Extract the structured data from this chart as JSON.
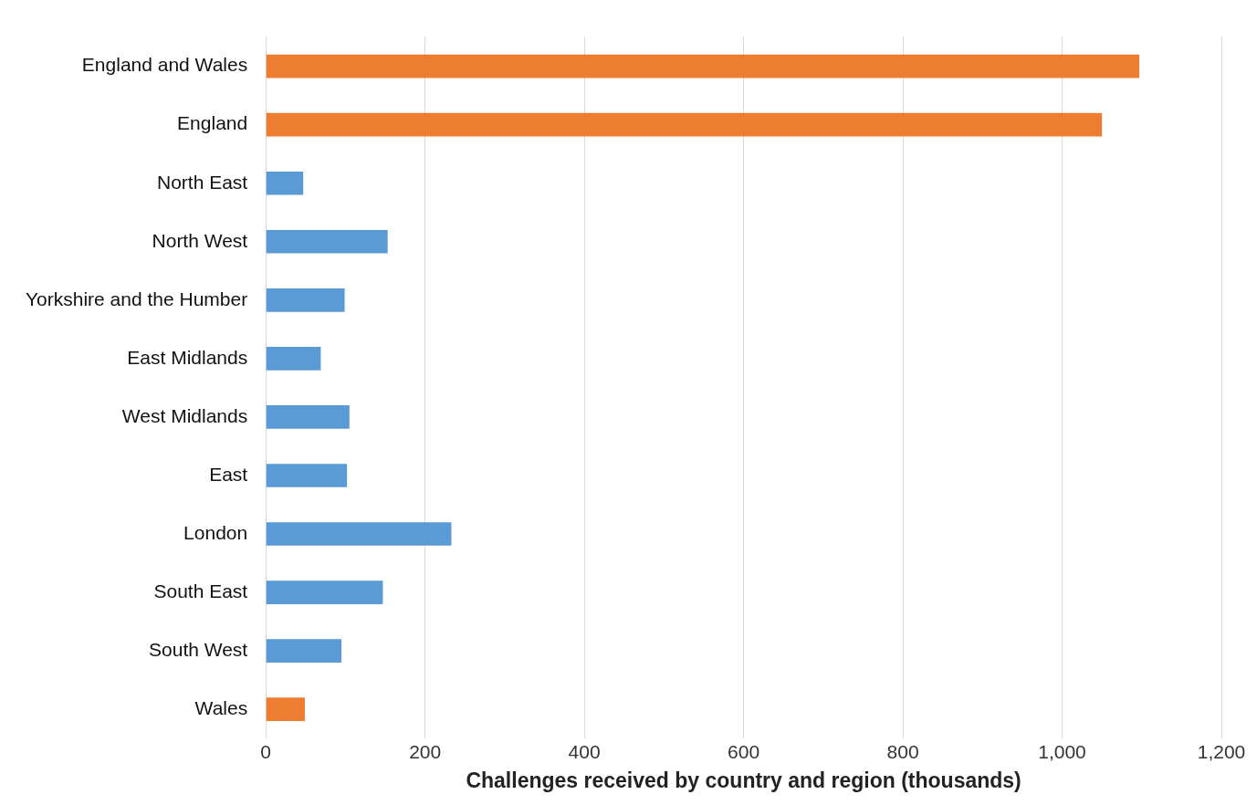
{
  "chart_data": {
    "type": "bar",
    "orientation": "horizontal",
    "xlabel": "Challenges received by country and region (thousands)",
    "categories": [
      "England and Wales",
      "England",
      "North East",
      "North West",
      "Yorkshire and the Humber",
      "East Midlands",
      "West Midlands",
      "East",
      "London",
      "South East",
      "South West",
      "Wales"
    ],
    "values": [
      1097,
      1050,
      47,
      153,
      99,
      69,
      105,
      102,
      233,
      147,
      95,
      49
    ],
    "colors": [
      "#ed7d31",
      "#ed7d31",
      "#5b9bd5",
      "#5b9bd5",
      "#5b9bd5",
      "#5b9bd5",
      "#5b9bd5",
      "#5b9bd5",
      "#5b9bd5",
      "#5b9bd5",
      "#5b9bd5",
      "#ed7d31"
    ],
    "xlim": [
      0,
      1200
    ],
    "xticks": [
      0,
      {
        "value": 200,
        "label": "200"
      },
      {
        "value": 400,
        "label": "400"
      },
      {
        "value": 600,
        "label": "600"
      },
      {
        "value": 800,
        "label": "800"
      },
      {
        "value": 1000,
        "label": "1,000"
      },
      {
        "value": 1200,
        "label": "1,200"
      }
    ],
    "grid": "x",
    "legend": false
  }
}
